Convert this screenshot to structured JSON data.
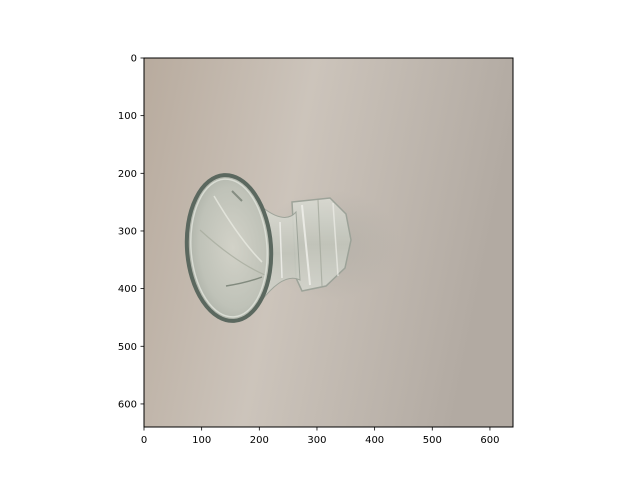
{
  "axes": {
    "xlim": [
      0,
      640
    ],
    "ylim": [
      640,
      0
    ],
    "y_inverted": true,
    "x_ticks": [
      0,
      100,
      200,
      300,
      400,
      500,
      600
    ],
    "y_ticks": [
      0,
      100,
      200,
      300,
      400,
      500,
      600
    ],
    "x_tick_labels": [
      "0",
      "100",
      "200",
      "300",
      "400",
      "500",
      "600"
    ],
    "y_tick_labels": [
      "0",
      "100",
      "200",
      "300",
      "400",
      "500",
      "600"
    ]
  },
  "image": {
    "subject": "glass-vase-icon",
    "colors": {
      "background_top_left": "#b9ada0",
      "background_center": "#c9c1b8",
      "background_right": "#b3aba3",
      "glass_rim": "#5c6a60",
      "glass_body": "#c4c6bc",
      "glass_highlight": "#e6e6e0",
      "frame": "#000000",
      "tick": "#000000"
    }
  }
}
